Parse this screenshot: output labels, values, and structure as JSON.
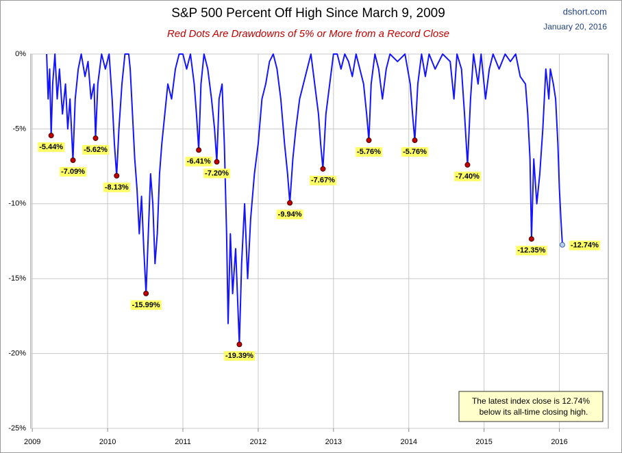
{
  "chart_data": {
    "type": "line",
    "title": "S&P 500 Percent Off High Since March 9, 2009",
    "subtitle": "Red Dots Are Drawdowns of 5% or More from a Record Close",
    "source": "dshort.com",
    "date": "January 20, 2016",
    "annotation": [
      "The latest index close is 12.74%",
      "below its all-time closing high."
    ],
    "color": "#1414ff",
    "x": [
      2009.19,
      2009.21,
      2009.23,
      2009.25,
      2009.27,
      2009.3,
      2009.33,
      2009.36,
      2009.4,
      2009.44,
      2009.47,
      2009.5,
      2009.54,
      2009.57,
      2009.61,
      2009.65,
      2009.7,
      2009.74,
      2009.78,
      2009.82,
      2009.84,
      2009.87,
      2009.92,
      2009.97,
      2010.02,
      2010.06,
      2010.09,
      2010.12,
      2010.15,
      2010.19,
      2010.23,
      2010.28,
      2010.3,
      2010.33,
      2010.36,
      2010.39,
      2010.42,
      2010.45,
      2010.48,
      2010.51,
      2010.54,
      2010.57,
      2010.6,
      2010.63,
      2010.66,
      2010.69,
      2010.72,
      2010.76,
      2010.8,
      2010.85,
      2010.9,
      2010.95,
      2011.0,
      2011.05,
      2011.1,
      2011.15,
      2011.18,
      2011.21,
      2011.24,
      2011.28,
      2011.33,
      2011.38,
      2011.42,
      2011.45,
      2011.48,
      2011.52,
      2011.55,
      2011.58,
      2011.6,
      2011.63,
      2011.66,
      2011.7,
      2011.75,
      2011.78,
      2011.82,
      2011.86,
      2011.9,
      2011.95,
      2012.0,
      2012.05,
      2012.1,
      2012.15,
      2012.2,
      2012.25,
      2012.3,
      2012.35,
      2012.39,
      2012.42,
      2012.46,
      2012.5,
      2012.55,
      2012.6,
      2012.65,
      2012.7,
      2012.75,
      2012.8,
      2012.83,
      2012.86,
      2012.9,
      2012.95,
      2013.0,
      2013.05,
      2013.1,
      2013.15,
      2013.2,
      2013.25,
      2013.3,
      2013.35,
      2013.4,
      2013.44,
      2013.47,
      2013.5,
      2013.55,
      2013.6,
      2013.65,
      2013.7,
      2013.75,
      2013.85,
      2013.95,
      2014.02,
      2014.05,
      2014.08,
      2014.12,
      2014.17,
      2014.22,
      2014.27,
      2014.35,
      2014.45,
      2014.55,
      2014.6,
      2014.64,
      2014.7,
      2014.74,
      2014.78,
      2014.82,
      2014.86,
      2014.92,
      2014.96,
      2015.02,
      2015.07,
      2015.12,
      2015.2,
      2015.28,
      2015.35,
      2015.42,
      2015.48,
      2015.55,
      2015.58,
      2015.61,
      2015.63,
      2015.66,
      2015.7,
      2015.74,
      2015.78,
      2015.82,
      2015.86,
      2015.88,
      2015.92,
      2015.95,
      2015.98,
      2016.0,
      2016.02,
      2016.04
    ],
    "values": [
      0,
      -3,
      -1,
      -5.44,
      -2,
      0,
      -3,
      -1,
      -4,
      -2,
      -5,
      -3,
      -7.09,
      -3,
      -1,
      0,
      -1.5,
      -0.5,
      -3,
      -2,
      -5.62,
      -2,
      0,
      -1,
      0,
      -3,
      -6,
      -8.13,
      -5,
      -2,
      0,
      0,
      -1,
      -4,
      -7,
      -9,
      -12,
      -9.5,
      -13,
      -15.99,
      -12,
      -8,
      -10,
      -14,
      -12,
      -8,
      -6,
      -4,
      -2,
      -3,
      -1,
      0,
      0,
      -1,
      0,
      -2,
      -4,
      -6.41,
      -2,
      0,
      -1,
      -3,
      -5,
      -7.2,
      -3,
      -2,
      -6,
      -12,
      -18,
      -12,
      -16,
      -13,
      -19.39,
      -14,
      -10,
      -15,
      -11,
      -8,
      -6,
      -3,
      -2,
      -0.5,
      0,
      -1,
      -3,
      -6,
      -8,
      -9.94,
      -7,
      -5,
      -3,
      -2,
      -1,
      0,
      -2,
      -4,
      -6,
      -7.67,
      -4,
      -2,
      0,
      0,
      -1,
      0,
      -0.5,
      -1.5,
      0,
      -1,
      -2,
      -4,
      -5.76,
      -2,
      0,
      -1,
      -3,
      -1,
      0,
      -0.5,
      0,
      -2,
      -4,
      -5.76,
      -2,
      0,
      -1.5,
      0,
      -1,
      0,
      -0.5,
      -3,
      0,
      -1,
      -4,
      -7.4,
      -3,
      0,
      -2,
      0,
      -3,
      -1,
      0,
      -1,
      0,
      -0.5,
      0,
      -1.5,
      -2,
      -4,
      -7,
      -12.35,
      -7,
      -10,
      -8,
      -5,
      -1,
      -3,
      -1,
      -2,
      -3,
      -6,
      -9,
      -11,
      -12.74
    ],
    "markers": {
      "color": "#c00000",
      "x": [
        2009.25,
        2009.54,
        2009.84,
        2010.12,
        2010.51,
        2011.21,
        2011.45,
        2011.75,
        2012.42,
        2012.86,
        2013.47,
        2014.08,
        2014.78,
        2015.63
      ],
      "values": [
        -5.44,
        -7.09,
        -5.62,
        -8.13,
        -15.99,
        -6.41,
        -7.2,
        -19.39,
        -9.94,
        -7.67,
        -5.76,
        -5.76,
        -7.4,
        -12.35
      ],
      "value_labels": [
        "-5.44%",
        "-7.09%",
        "-5.62%",
        "-8.13%",
        "-15.99%",
        "-6.41%",
        "-7.20%",
        "-19.39%",
        "-9.94%",
        "-7.67%",
        "-5.76%",
        "-5.76%",
        "-7.40%",
        "-12.35%"
      ]
    },
    "latest": {
      "x": 2016.04,
      "value": -12.74,
      "value_label": "-12.74%",
      "color": "#b8d0f0"
    },
    "xlim": [
      2008.98,
      2016.65
    ],
    "ylim": [
      -25,
      0
    ],
    "xticks": [
      2009,
      2010,
      2011,
      2012,
      2013,
      2014,
      2015,
      2016
    ],
    "yticks": [
      {
        "value": 0,
        "label": "0%"
      },
      {
        "value": -5,
        "label": "-5%"
      },
      {
        "value": -10,
        "label": "-10%"
      },
      {
        "value": -15,
        "label": "-15%"
      },
      {
        "value": -20,
        "label": "-20%"
      },
      {
        "value": -25,
        "label": "-25%"
      }
    ],
    "grid": true
  }
}
